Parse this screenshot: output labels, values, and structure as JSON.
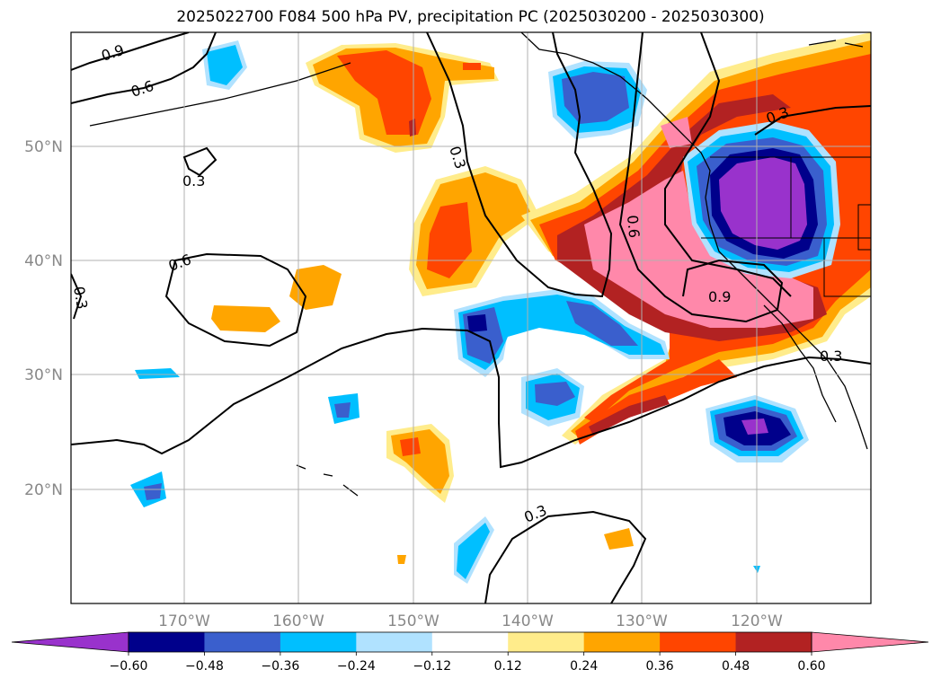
{
  "title": "2025022700 F084 500 hPa PV, precipitation PC (2025030200 - 2025030300)",
  "lon_ticks": [
    "170°W",
    "160°W",
    "150°W",
    "140°W",
    "130°W",
    "120°W"
  ],
  "lat_ticks": [
    "50°N",
    "40°N",
    "30°N",
    "20°N"
  ],
  "colorbar": {
    "colors": [
      "#9932cc",
      "#00008b",
      "#3a5fcd",
      "#00bfff",
      "#b0e2ff",
      "#ffffff",
      "#ffec8b",
      "#ffa500",
      "#ff4500",
      "#b22222",
      "#ff88aa"
    ],
    "labels": [
      "−0.60",
      "−0.48",
      "−0.36",
      "−0.24",
      "−0.12",
      "0.12",
      "0.24",
      "0.36",
      "0.48",
      "0.60"
    ]
  },
  "contour_labels": [
    "0.9",
    "0.6",
    "0.3",
    "0.3",
    "0.6",
    "0.3",
    "0.3",
    "0.6",
    "0.9",
    "0.3",
    "0.3"
  ]
}
